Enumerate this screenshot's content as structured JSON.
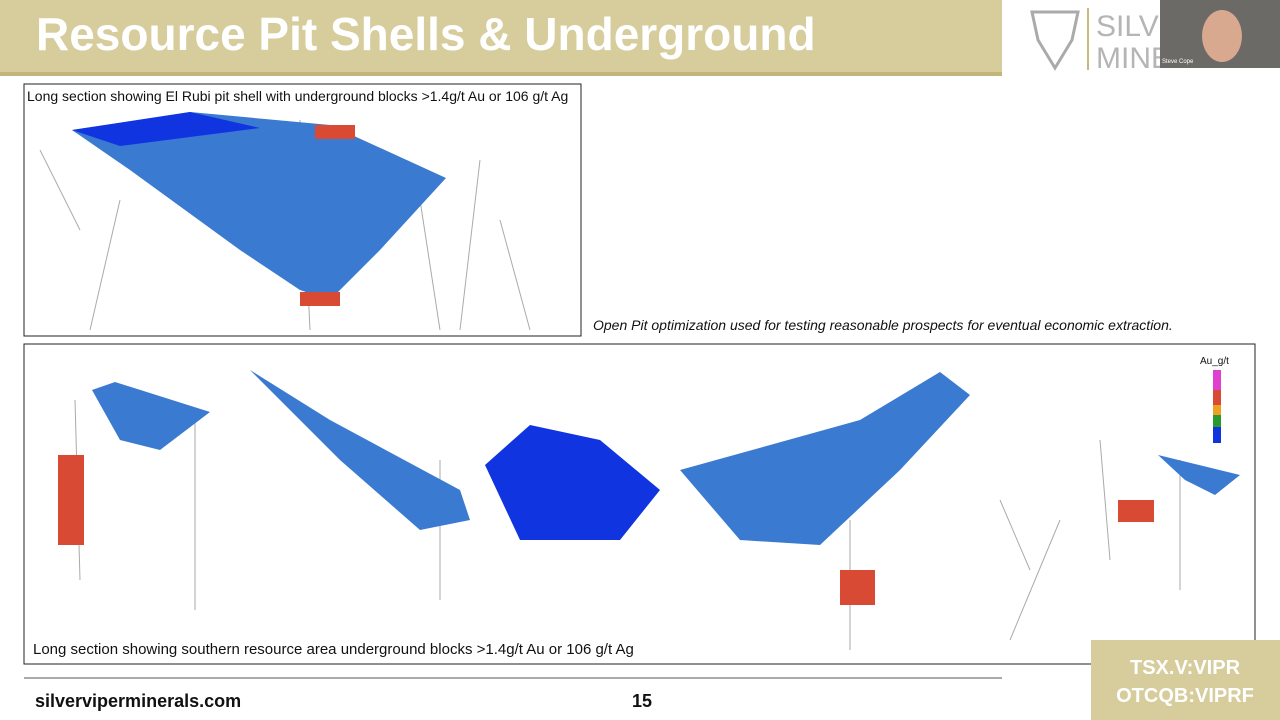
{
  "header": {
    "title": "Resource Pit Shells & Underground",
    "logo_line1": "SILVE",
    "logo_line2": "MINE"
  },
  "video": {
    "name": "Steve Cope"
  },
  "top_panel": {
    "caption": "Long section showing El Rubi pit shell with underground blocks >1.4g/t Au or 106 g/t Ag"
  },
  "note": "Open Pit optimization used for testing reasonable prospects for eventual economic extraction.",
  "bottom_panel": {
    "caption": "Long section showing southern resource area underground blocks >1.4g/t Au or 106 g/t Ag",
    "legend_title": "Au_g/t"
  },
  "footer": {
    "url": "silverviperminerals.com",
    "page": "15",
    "ticker1": "TSX.V:VIPR",
    "ticker2": "OTCQB:VIPRF"
  }
}
